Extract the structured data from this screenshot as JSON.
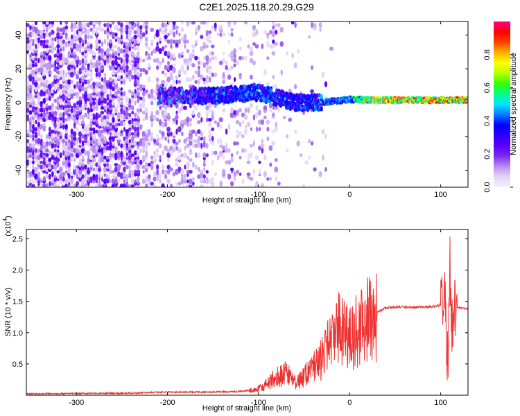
{
  "title": "C2E1.2025.118.20.29.G29",
  "chart_data": [
    {
      "type": "heatmap",
      "xlabel": "Height of straight line (km)",
      "ylabel": "Frequency (Hz)",
      "xlim": [
        -355,
        130
      ],
      "ylim": [
        -50,
        48
      ],
      "x_ticks": [
        -300,
        -200,
        -100,
        0,
        100
      ],
      "y_ticks": [
        -40,
        -20,
        0,
        20,
        40
      ],
      "colorbar": {
        "label": "Normalized spectral amplitude",
        "range": [
          0,
          1
        ],
        "ticks": [
          "0.0",
          "0.2",
          "0.4",
          "0.6",
          "0.8"
        ],
        "tick_values": [
          0.0,
          0.2,
          0.4,
          0.6,
          0.8
        ],
        "colors": [
          "#f4f0fb",
          "#e3d6f7",
          "#b98cf0",
          "#7a2cf0",
          "#5a00ff",
          "#2b00ff",
          "#0000ff",
          "#0a78ff",
          "#00e6ff",
          "#00ff88",
          "#33ff00",
          "#b8ff00",
          "#ffff00",
          "#ffb000",
          "#ff4000",
          "#ff0000",
          "#ff0080"
        ]
      },
      "signal_band": [
        {
          "x": -210,
          "f": 4,
          "amp": 0.25
        },
        {
          "x": -150,
          "f": 4,
          "amp": 0.35
        },
        {
          "x": -100,
          "f": 6,
          "amp": 0.45
        },
        {
          "x": -60,
          "f": 0,
          "amp": 0.35
        },
        {
          "x": -30,
          "f": 0,
          "amp": 0.45
        },
        {
          "x": 0,
          "f": 2,
          "amp": 0.5
        },
        {
          "x": 20,
          "f": 1.5,
          "amp": 0.75
        },
        {
          "x": 60,
          "f": 1.5,
          "amp": 0.85
        },
        {
          "x": 100,
          "f": 1.5,
          "amp": 0.9
        },
        {
          "x": 130,
          "f": 1.5,
          "amp": 0.85
        }
      ]
    },
    {
      "type": "line",
      "xlabel": "Height of straight line (km)",
      "ylabel": "SNR (10 * v/v)",
      "multiplier_base": "(x10",
      "multiplier_exp": "4",
      "multiplier_close": ")",
      "xlim": [
        -355,
        130
      ],
      "ylim": [
        0,
        2.65
      ],
      "x_ticks": [
        -300,
        -200,
        -100,
        0,
        100
      ],
      "y_ticks": [
        0.5,
        1.0,
        1.5,
        2.0,
        2.5
      ],
      "y_tick_labels": [
        "0.5",
        "1.0",
        "1.5",
        "2.0",
        "2.5"
      ],
      "color": "#ee3030",
      "series": [
        {
          "x": [
            -355,
            -300,
            -250,
            -200,
            -150,
            -120,
            -100,
            -90,
            -80,
            -70,
            -60,
            -50,
            -40,
            -30,
            -20,
            -12,
            -5,
            0,
            10,
            20,
            30,
            40,
            60,
            80,
            95,
            100,
            105,
            108,
            110,
            112,
            115,
            120,
            130
          ],
          "y": [
            0.02,
            0.03,
            0.03,
            0.05,
            0.05,
            0.06,
            0.1,
            0.18,
            0.3,
            0.35,
            0.2,
            0.3,
            0.45,
            0.6,
            0.85,
            1.05,
            0.95,
            0.9,
            1.05,
            1.2,
            1.32,
            1.4,
            1.41,
            1.41,
            1.42,
            1.45,
            1.5,
            0.4,
            2.2,
            1.0,
            1.4,
            1.4,
            1.38
          ]
        }
      ]
    }
  ]
}
